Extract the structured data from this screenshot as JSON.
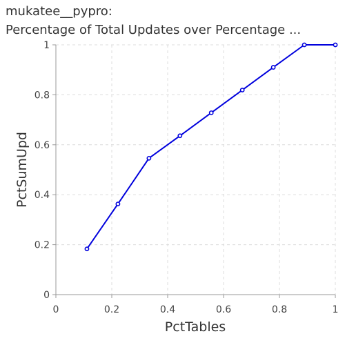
{
  "chart_data": {
    "type": "line",
    "title": "mukatee__pypro:",
    "subtitle": "Percentage of Total Updates over Percentage ...",
    "xlabel": "PctTables",
    "ylabel": "PctSumUpd",
    "xlim": [
      0,
      1
    ],
    "ylim": [
      0,
      1
    ],
    "xticks": [
      "0",
      "0.2",
      "0.4",
      "0.6",
      "0.8",
      "1"
    ],
    "yticks": [
      "0",
      "0.2",
      "0.4",
      "0.6",
      "0.8",
      "1"
    ],
    "grid": true,
    "legend": "none",
    "series": [
      {
        "color": "#0000dd",
        "x": [
          0.111,
          0.222,
          0.333,
          0.444,
          0.556,
          0.667,
          0.778,
          0.889,
          1.0
        ],
        "y": [
          0.183,
          0.363,
          0.546,
          0.636,
          0.728,
          0.819,
          0.91,
          1.0,
          1.0
        ]
      }
    ]
  }
}
